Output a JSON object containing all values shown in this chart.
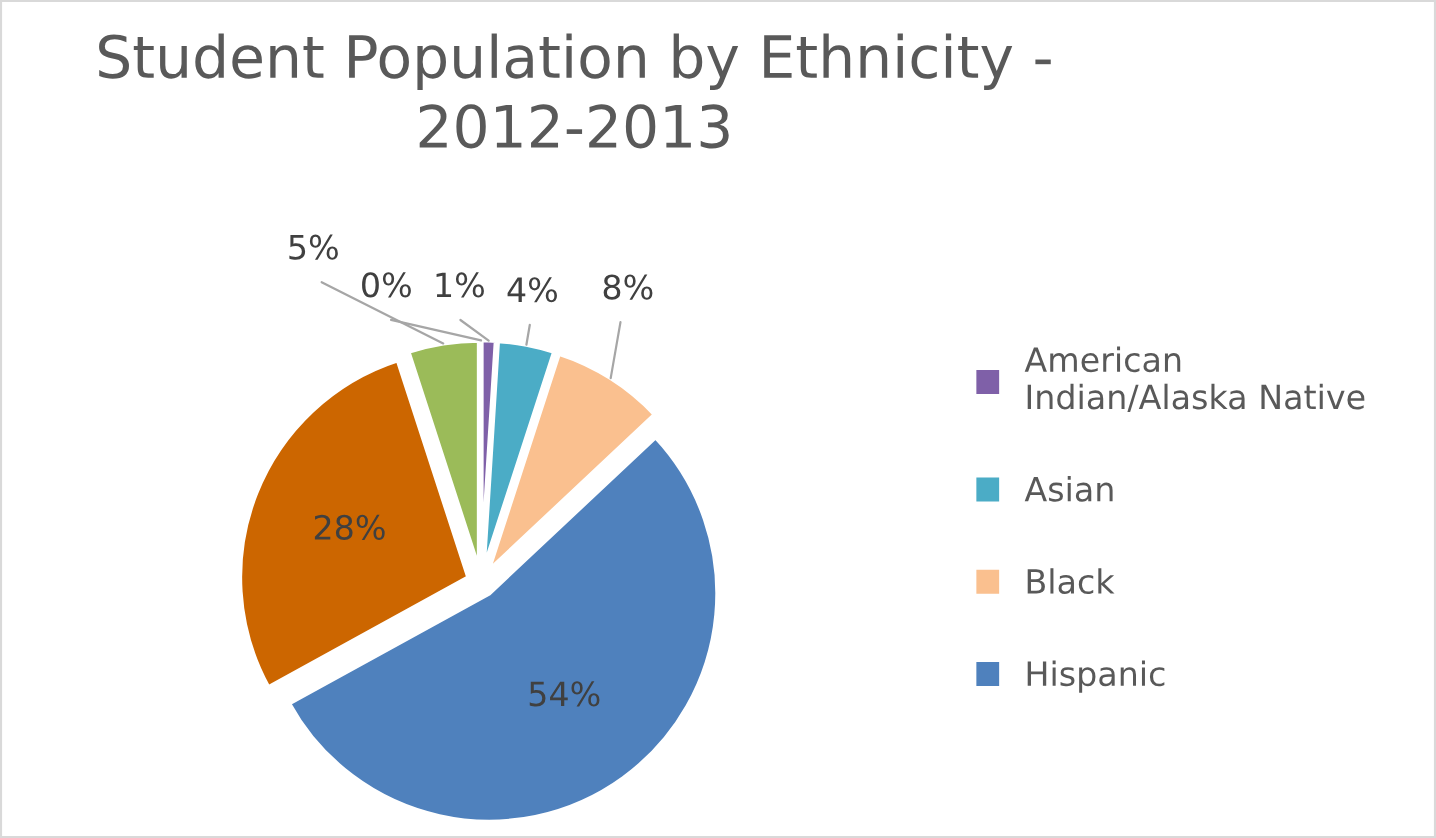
{
  "chart_data": {
    "type": "pie",
    "title": "Student Population by Ethnicity -\n2012-2013",
    "categories": [
      "American Indian/Alaska Native",
      "Asian",
      "Black",
      "Hispanic",
      null,
      null,
      null
    ],
    "values": [
      1,
      4,
      8,
      54,
      28,
      5,
      0
    ],
    "colors": [
      "#7f60a8",
      "#4bacc6",
      "#fac08f",
      "#4f81bd",
      "#cc6600",
      "#9bbb59",
      "#2c4d75"
    ],
    "value_labels": [
      "1%",
      "4%",
      "8%",
      "54%",
      "28%",
      "5%",
      "0%"
    ],
    "legend": "right"
  }
}
